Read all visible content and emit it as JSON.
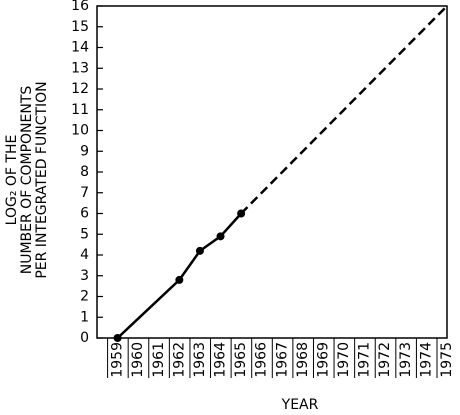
{
  "chart_data": {
    "type": "line",
    "y_label_lines": [
      "LOG₂ OF THE",
      "NUMBER OF COMPONENTS",
      "PER INTEGRATED FUNCTION"
    ],
    "x_label": "YEAR",
    "series": [
      {
        "x": [
          1959,
          1962,
          1963,
          1964,
          1965
        ],
        "values": [
          0,
          2.8,
          4.2,
          4.9,
          6
        ],
        "color": "#000000",
        "line_style": "solid",
        "markers": true
      },
      {
        "x": [
          1965,
          1975
        ],
        "values": [
          6,
          16
        ],
        "color": "#000000",
        "line_style": "dashed",
        "markers": false
      }
    ],
    "xlim": [
      1958,
      1975
    ],
    "xticks": [
      1959,
      1960,
      1961,
      1962,
      1963,
      1964,
      1965,
      1966,
      1967,
      1968,
      1969,
      1970,
      1971,
      1972,
      1973,
      1974,
      1975
    ],
    "ylim": [
      0,
      16
    ],
    "yticks": [
      0,
      1,
      2,
      3,
      4,
      5,
      6,
      7,
      8,
      9,
      10,
      11,
      12,
      13,
      14,
      15,
      16
    ]
  }
}
